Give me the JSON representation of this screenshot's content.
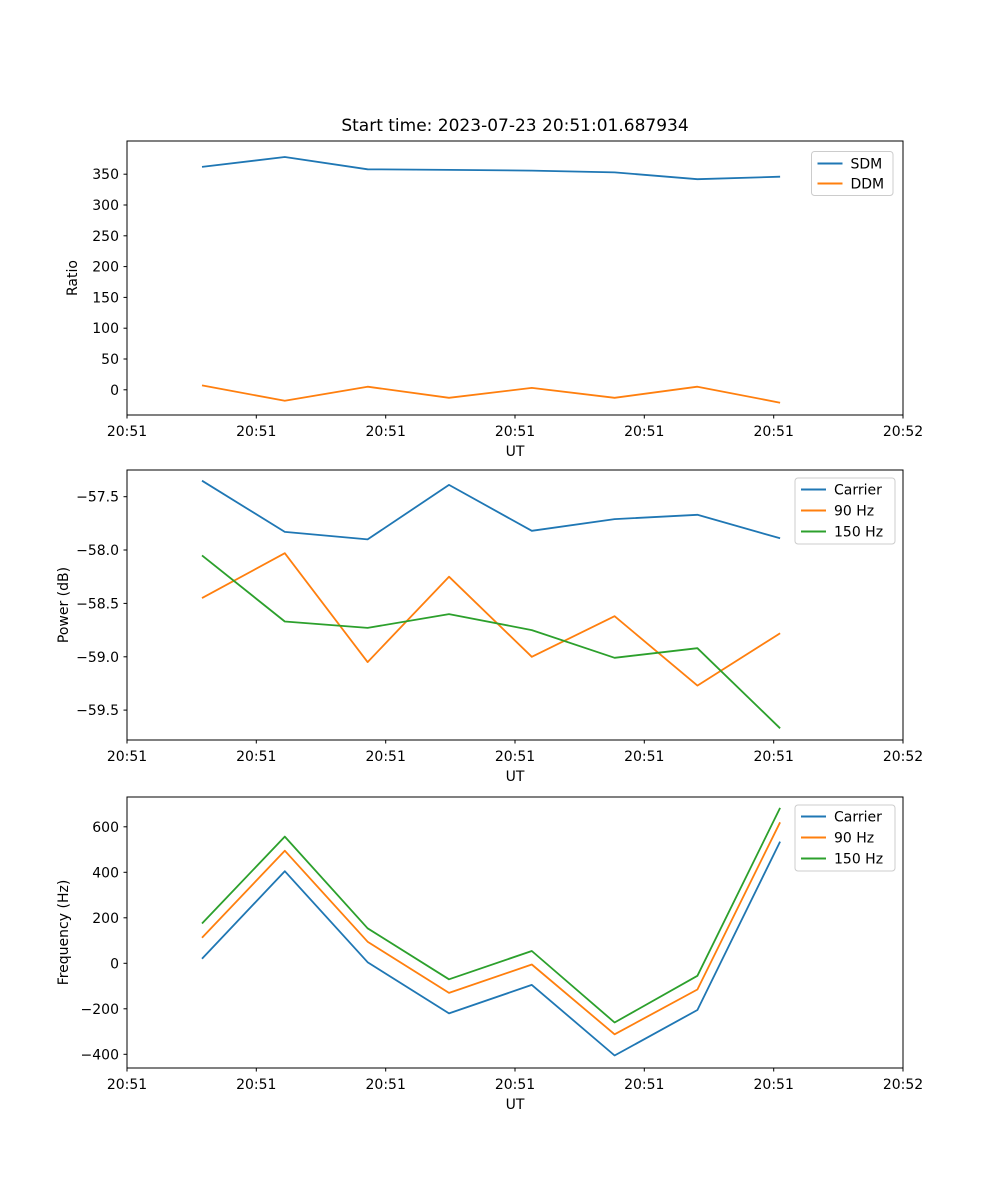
{
  "figure": {
    "background": "#ffffff",
    "text_color": "#000000",
    "frame_color": "#000000",
    "legend_border_color": "#cccccc"
  },
  "chart_data": [
    {
      "type": "line",
      "title": "Start time: 2023-07-23 20:51:01.687934",
      "xlabel": "UT",
      "ylabel": "Ratio",
      "grid": false,
      "legend_position": "upper right",
      "xlim_seconds": [
        0,
        60
      ],
      "xticks_seconds": [
        0,
        10,
        20,
        30,
        40,
        50,
        60
      ],
      "xtick_labels": [
        "20:51",
        "20:51",
        "20:51",
        "20:51",
        "20:51",
        "20:51",
        "20:52"
      ],
      "ylim": [
        -41,
        404
      ],
      "yticks": [
        0,
        50,
        100,
        150,
        200,
        250,
        300,
        350
      ],
      "ytick_labels": [
        "0",
        "50",
        "100",
        "150",
        "200",
        "250",
        "300",
        "350"
      ],
      "x_seconds": [
        5.8,
        12.2,
        18.6,
        24.9,
        31.3,
        37.7,
        44.1,
        50.5
      ],
      "series": [
        {
          "name": "SDM",
          "color": "#1f77b4",
          "values": [
            362,
            378,
            358,
            357,
            356,
            353,
            342,
            346
          ]
        },
        {
          "name": "DDM",
          "color": "#ff7f0e",
          "values": [
            7,
            -18,
            5,
            -13,
            3,
            -13,
            5,
            -21
          ]
        }
      ]
    },
    {
      "type": "line",
      "title": "",
      "xlabel": "UT",
      "ylabel": "Power (dB)",
      "grid": false,
      "legend_position": "upper right",
      "xlim_seconds": [
        0,
        60
      ],
      "xticks_seconds": [
        0,
        10,
        20,
        30,
        40,
        50,
        60
      ],
      "xtick_labels": [
        "20:51",
        "20:51",
        "20:51",
        "20:51",
        "20:51",
        "20:51",
        "20:52"
      ],
      "ylim": [
        -59.78,
        -57.25
      ],
      "yticks": [
        -57.5,
        -58.0,
        -58.5,
        -59.0,
        -59.5
      ],
      "ytick_labels": [
        "−57.5",
        "−58.0",
        "−58.5",
        "−59.0",
        "−59.5"
      ],
      "x_seconds": [
        5.8,
        12.2,
        18.6,
        24.9,
        31.3,
        37.7,
        44.1,
        50.5
      ],
      "series": [
        {
          "name": "Carrier",
          "color": "#1f77b4",
          "values": [
            -57.35,
            -57.83,
            -57.9,
            -57.39,
            -57.82,
            -57.71,
            -57.67,
            -57.89
          ]
        },
        {
          "name": "90 Hz",
          "color": "#ff7f0e",
          "values": [
            -58.45,
            -58.03,
            -59.05,
            -58.25,
            -59.0,
            -58.62,
            -59.27,
            -58.78
          ]
        },
        {
          "name": "150 Hz",
          "color": "#2ca02c",
          "values": [
            -58.05,
            -58.67,
            -58.73,
            -58.6,
            -58.75,
            -59.01,
            -58.92,
            -59.67
          ]
        }
      ]
    },
    {
      "type": "line",
      "title": "",
      "xlabel": "UT",
      "ylabel": "Frequency (Hz)",
      "grid": false,
      "legend_position": "upper right",
      "xlim_seconds": [
        0,
        60
      ],
      "xticks_seconds": [
        0,
        10,
        20,
        30,
        40,
        50,
        60
      ],
      "xtick_labels": [
        "20:51",
        "20:51",
        "20:51",
        "20:51",
        "20:51",
        "20:51",
        "20:52"
      ],
      "ylim": [
        -460,
        731
      ],
      "yticks": [
        600,
        400,
        200,
        0,
        -200,
        -400
      ],
      "ytick_labels": [
        "600",
        "400",
        "200",
        "0",
        "−200",
        "−400"
      ],
      "x_seconds": [
        5.8,
        12.2,
        18.6,
        24.9,
        31.3,
        37.7,
        44.1,
        50.5
      ],
      "series": [
        {
          "name": "Carrier",
          "color": "#1f77b4",
          "values": [
            20,
            405,
            5,
            -220,
            -95,
            -405,
            -205,
            535
          ]
        },
        {
          "name": "90 Hz",
          "color": "#ff7f0e",
          "values": [
            112,
            495,
            95,
            -130,
            -5,
            -312,
            -115,
            620
          ]
        },
        {
          "name": "150 Hz",
          "color": "#2ca02c",
          "values": [
            175,
            557,
            154,
            -70,
            54,
            -260,
            -55,
            683
          ]
        }
      ]
    }
  ]
}
